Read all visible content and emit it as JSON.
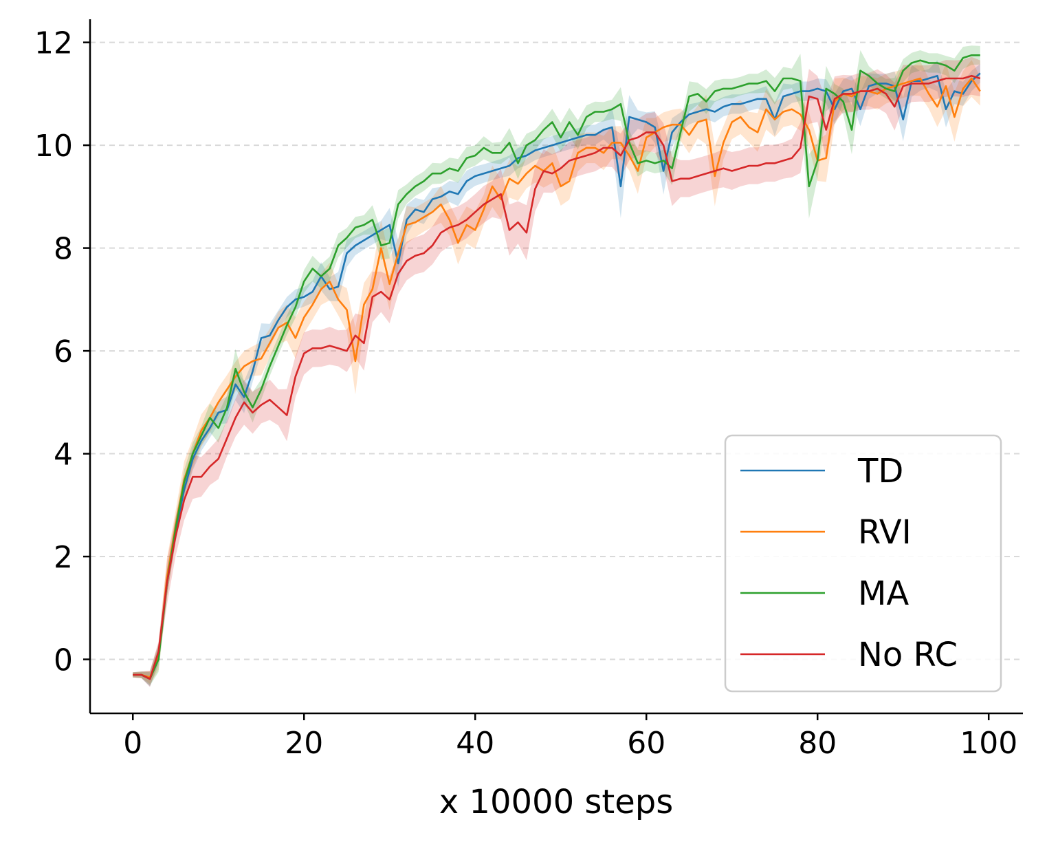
{
  "chart_data": {
    "type": "line",
    "title": "",
    "xlabel": "x 10000 steps",
    "ylabel": "",
    "xlim": [
      -5,
      104
    ],
    "ylim": [
      -1.05,
      12.45
    ],
    "xticks": [
      0,
      20,
      40,
      60,
      80,
      100
    ],
    "yticks": [
      0,
      2,
      4,
      6,
      8,
      10,
      12
    ],
    "xtick_labels": [
      "0",
      "20",
      "40",
      "60",
      "80",
      "100"
    ],
    "ytick_labels": [
      "0",
      "2",
      "4",
      "6",
      "8",
      "10",
      "12"
    ],
    "grid": "horizontal dashed",
    "legend_position": "lower-right",
    "series": [
      {
        "name": "TD",
        "color": "#1f77b4",
        "band": 0.18,
        "values": [
          -0.3,
          -0.3,
          -0.38,
          0.1,
          1.5,
          2.5,
          3.3,
          3.9,
          4.25,
          4.5,
          4.8,
          4.85,
          5.35,
          5.1,
          5.6,
          6.25,
          6.3,
          6.6,
          6.85,
          7.0,
          7.05,
          7.15,
          7.45,
          7.2,
          7.25,
          7.9,
          8.05,
          8.15,
          8.25,
          8.35,
          8.45,
          7.7,
          8.55,
          8.75,
          8.7,
          8.95,
          9.0,
          9.1,
          9.05,
          9.3,
          9.4,
          9.45,
          9.5,
          9.55,
          9.6,
          9.75,
          9.8,
          9.9,
          9.95,
          10.0,
          10.05,
          10.1,
          10.15,
          10.2,
          10.2,
          10.3,
          10.35,
          9.2,
          10.55,
          10.5,
          10.45,
          10.35,
          9.5,
          10.25,
          10.45,
          10.6,
          10.65,
          10.7,
          10.65,
          10.75,
          10.8,
          10.8,
          10.85,
          10.9,
          10.9,
          10.5,
          10.95,
          11.0,
          11.05,
          11.05,
          11.1,
          11.05,
          10.7,
          11.05,
          11.1,
          10.7,
          11.15,
          11.2,
          11.2,
          11.15,
          10.5,
          11.25,
          11.25,
          11.3,
          11.35,
          10.7,
          11.05,
          11.0,
          11.25,
          11.4
        ]
      },
      {
        "name": "RVI",
        "color": "#ff7f0e",
        "band": 0.28,
        "values": [
          -0.3,
          -0.3,
          -0.35,
          0.05,
          1.6,
          2.6,
          3.5,
          4.0,
          4.45,
          4.7,
          5.0,
          5.25,
          5.5,
          5.7,
          5.8,
          5.85,
          6.15,
          6.45,
          6.55,
          6.25,
          6.65,
          6.9,
          7.2,
          7.35,
          7.0,
          6.8,
          5.8,
          6.9,
          7.2,
          8.0,
          7.3,
          7.9,
          8.45,
          8.5,
          8.6,
          8.7,
          8.85,
          8.55,
          8.1,
          8.45,
          8.35,
          8.75,
          9.2,
          8.95,
          9.35,
          9.25,
          9.45,
          9.6,
          9.5,
          9.65,
          9.2,
          9.3,
          9.85,
          9.95,
          9.95,
          9.85,
          10.05,
          10.05,
          9.8,
          9.5,
          10.15,
          10.25,
          10.35,
          10.4,
          10.4,
          10.2,
          10.45,
          10.5,
          9.4,
          10.05,
          10.45,
          10.55,
          10.35,
          10.25,
          10.7,
          10.5,
          10.65,
          10.7,
          10.6,
          10.3,
          9.7,
          9.75,
          10.85,
          11.0,
          10.95,
          11.05,
          11.05,
          11.0,
          11.1,
          11.15,
          11.2,
          11.25,
          11.3,
          11.0,
          10.75,
          11.15,
          10.55,
          11.1,
          11.3,
          11.05
        ]
      },
      {
        "name": "MA",
        "color": "#2ca02c",
        "band": 0.18,
        "values": [
          -0.3,
          -0.3,
          -0.38,
          0.0,
          1.5,
          2.55,
          3.45,
          4.0,
          4.35,
          4.7,
          4.5,
          4.9,
          5.65,
          5.2,
          4.9,
          5.25,
          5.7,
          6.1,
          6.5,
          6.85,
          7.35,
          7.6,
          7.45,
          7.6,
          8.05,
          8.2,
          8.4,
          8.45,
          8.55,
          8.05,
          8.1,
          8.85,
          9.05,
          9.2,
          9.3,
          9.45,
          9.45,
          9.55,
          9.5,
          9.75,
          9.8,
          9.95,
          9.85,
          9.85,
          10.05,
          9.65,
          10.0,
          10.1,
          10.3,
          10.45,
          10.15,
          10.45,
          10.2,
          10.55,
          10.65,
          10.65,
          10.7,
          10.8,
          10.05,
          9.65,
          9.7,
          9.65,
          9.7,
          9.55,
          10.25,
          10.95,
          11.0,
          10.85,
          11.05,
          11.1,
          11.1,
          11.15,
          11.2,
          11.2,
          11.25,
          11.05,
          11.3,
          11.3,
          11.25,
          9.2,
          9.7,
          11.1,
          11.0,
          10.85,
          10.3,
          11.45,
          11.35,
          11.2,
          11.1,
          11.05,
          11.45,
          11.6,
          11.65,
          11.6,
          11.6,
          11.55,
          11.45,
          11.7,
          11.75,
          11.75
        ]
      },
      {
        "name": "No RC",
        "color": "#d62728",
        "band": 0.35,
        "values": [
          -0.3,
          -0.3,
          -0.38,
          0.15,
          1.5,
          2.4,
          3.1,
          3.55,
          3.55,
          3.75,
          3.9,
          4.3,
          4.7,
          5.0,
          4.8,
          4.95,
          5.05,
          4.9,
          4.75,
          5.5,
          5.95,
          6.05,
          6.05,
          6.1,
          6.05,
          6.0,
          6.3,
          6.15,
          7.05,
          7.15,
          7.0,
          7.5,
          7.75,
          7.85,
          7.9,
          8.05,
          8.3,
          8.4,
          8.45,
          8.55,
          8.7,
          8.85,
          8.95,
          9.05,
          8.35,
          8.5,
          8.3,
          9.15,
          9.5,
          9.45,
          9.55,
          9.7,
          9.75,
          9.8,
          9.85,
          9.95,
          9.95,
          9.8,
          10.1,
          10.15,
          10.25,
          10.25,
          10.0,
          9.3,
          9.35,
          9.35,
          9.4,
          9.45,
          9.5,
          9.55,
          9.5,
          9.55,
          9.6,
          9.6,
          9.65,
          9.65,
          9.7,
          9.75,
          9.95,
          10.95,
          10.9,
          10.3,
          10.9,
          11.0,
          11.0,
          11.05,
          11.05,
          11.1,
          11.0,
          10.75,
          11.15,
          11.2,
          11.2,
          11.2,
          11.25,
          11.3,
          11.3,
          11.3,
          11.35,
          11.3
        ]
      }
    ]
  }
}
